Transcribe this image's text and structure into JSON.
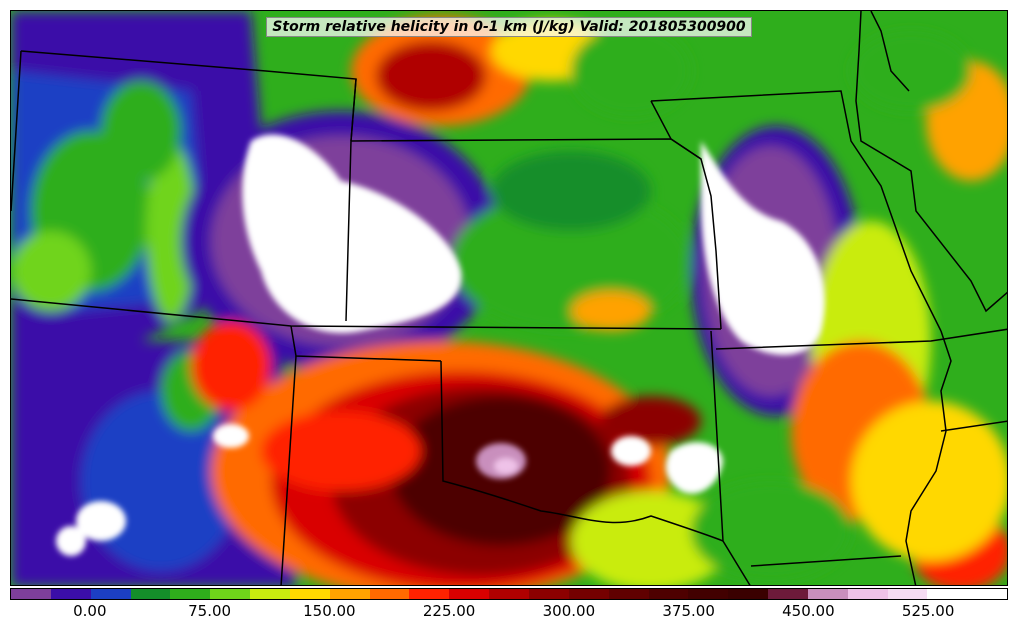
{
  "title": "Storm relative helicity in 0-1 km (J/kg) Valid: 201805300900",
  "colorbar": {
    "colors": [
      "#7e3f9b",
      "#3b0ea8",
      "#1c3fc4",
      "#148e2a",
      "#2fae1c",
      "#6fd41a",
      "#c9ec0f",
      "#ffd800",
      "#ffa200",
      "#ff6a00",
      "#ff2200",
      "#d90000",
      "#b00000",
      "#8c0000",
      "#750000",
      "#600000",
      "#4e0000",
      "#420000",
      "#3a0000",
      "#6d1a3a",
      "#c98fbd",
      "#efc2e8",
      "#f6dcf3",
      "#ffffff",
      "#ffffff"
    ],
    "tick_labels": [
      "0.00",
      "75.00",
      "150.00",
      "225.00",
      "300.00",
      "375.00",
      "450.00",
      "525.00"
    ],
    "tick_values": [
      0,
      75,
      150,
      225,
      300,
      375,
      450,
      525
    ],
    "min": -50,
    "max": 575
  },
  "map": {
    "field": "Storm relative helicity in 0-1 km",
    "units": "J/kg",
    "valid": "201805300900"
  }
}
